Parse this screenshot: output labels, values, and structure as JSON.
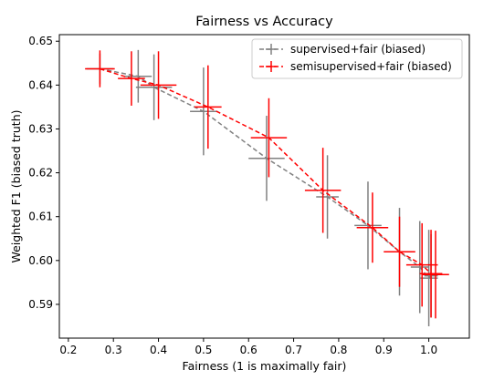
{
  "chart_data": {
    "type": "scatter",
    "title": "Fairness vs Accuracy",
    "xlabel": "Fairness (1 is maximally fair)",
    "ylabel": "Weighted F1 (biased truth)",
    "xlim": [
      0.18,
      1.09
    ],
    "ylim": [
      0.5823,
      0.6515
    ],
    "xticks": [
      "0.2",
      "0.3",
      "0.4",
      "0.5",
      "0.6",
      "0.7",
      "0.8",
      "0.9",
      "1.0"
    ],
    "yticks": [
      "0.59",
      "0.60",
      "0.61",
      "0.62",
      "0.63",
      "0.64",
      "0.65"
    ],
    "grid": false,
    "legend_position": "top-right",
    "error_bars": true,
    "series": [
      {
        "name": "supervised+fair (biased)",
        "color": "#808080",
        "line_style": "dashed",
        "points": [
          {
            "x": 0.27,
            "y": 0.6437,
            "xerr": 0.03,
            "yerr": 0.0035
          },
          {
            "x": 0.355,
            "y": 0.642,
            "xerr": 0.03,
            "yerr": 0.006
          },
          {
            "x": 0.39,
            "y": 0.6395,
            "xerr": 0.04,
            "yerr": 0.0075
          },
          {
            "x": 0.5,
            "y": 0.634,
            "xerr": 0.03,
            "yerr": 0.01
          },
          {
            "x": 0.64,
            "y": 0.6233,
            "xerr": 0.04,
            "yerr": 0.0097
          },
          {
            "x": 0.775,
            "y": 0.6145,
            "xerr": 0.025,
            "yerr": 0.0095
          },
          {
            "x": 0.865,
            "y": 0.608,
            "xerr": 0.03,
            "yerr": 0.01
          },
          {
            "x": 0.935,
            "y": 0.602,
            "xerr": 0.025,
            "yerr": 0.01
          },
          {
            "x": 0.98,
            "y": 0.5985,
            "xerr": 0.02,
            "yerr": 0.0105
          },
          {
            "x": 1.0,
            "y": 0.596,
            "xerr": 0.02,
            "yerr": 0.011
          },
          {
            "x": 1.005,
            "y": 0.5965,
            "xerr": 0.015,
            "yerr": 0.0095
          }
        ]
      },
      {
        "name": "semisupervised+fair (biased)",
        "color": "#ff0000",
        "line_style": "dashed",
        "points": [
          {
            "x": 0.27,
            "y": 0.6437,
            "xerr": 0.033,
            "yerr": 0.0042
          },
          {
            "x": 0.34,
            "y": 0.6415,
            "xerr": 0.03,
            "yerr": 0.0062
          },
          {
            "x": 0.4,
            "y": 0.64,
            "xerr": 0.04,
            "yerr": 0.0077
          },
          {
            "x": 0.51,
            "y": 0.635,
            "xerr": 0.03,
            "yerr": 0.0095
          },
          {
            "x": 0.645,
            "y": 0.628,
            "xerr": 0.04,
            "yerr": 0.009
          },
          {
            "x": 0.765,
            "y": 0.616,
            "xerr": 0.04,
            "yerr": 0.0097
          },
          {
            "x": 0.875,
            "y": 0.6075,
            "xerr": 0.035,
            "yerr": 0.008
          },
          {
            "x": 0.935,
            "y": 0.602,
            "xerr": 0.035,
            "yerr": 0.008
          },
          {
            "x": 0.985,
            "y": 0.599,
            "xerr": 0.035,
            "yerr": 0.0095
          },
          {
            "x": 1.005,
            "y": 0.597,
            "xerr": 0.025,
            "yerr": 0.01
          },
          {
            "x": 1.015,
            "y": 0.5968,
            "xerr": 0.03,
            "yerr": 0.01
          }
        ]
      }
    ]
  }
}
